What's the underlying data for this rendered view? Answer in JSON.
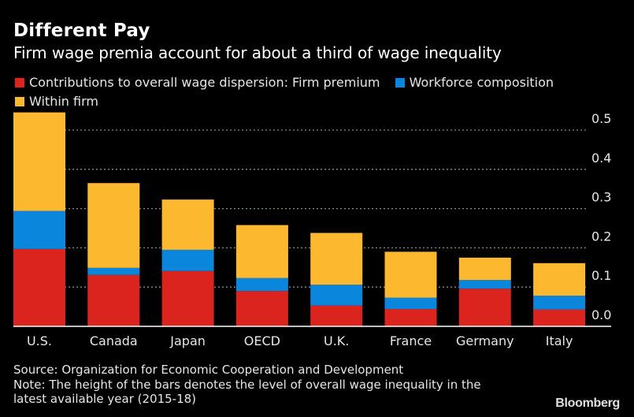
{
  "header": {
    "title": "Different Pay",
    "subtitle": "Firm wage premia account for about a third of wage inequality"
  },
  "footer": {
    "source": "Source: Organization for Economic Cooperation and Development",
    "note_line1": "Note: The height of the bars denotes the level of overall wage inequality in the",
    "note_line2": "latest available year (2015-18)",
    "brand": "Bloomberg"
  },
  "colors": {
    "background": "#000000",
    "firm_premium": "#dc241f",
    "workforce_composition": "#0a86dd",
    "within_firm": "#fcb930",
    "gridline": "#8a8a8a",
    "axis": "#ffffff"
  },
  "chart_data": {
    "type": "bar",
    "stacked": true,
    "title": "Different Pay",
    "subtitle": "Firm wage premia account for about a third of wage inequality",
    "legend_title": "Contributions to overall wage dispersion:",
    "legend_position": "top-left",
    "categories": [
      "U.S.",
      "Canada",
      "Japan",
      "OECD",
      "U.K.",
      "France",
      "Germany",
      "Italy"
    ],
    "series": [
      {
        "name": "Firm premium",
        "legend_label": "Contributions to overall wage dispersion: Firm premium",
        "color": "#dc241f",
        "values": [
          0.197,
          0.131,
          0.141,
          0.09,
          0.053,
          0.044,
          0.096,
          0.043
        ]
      },
      {
        "name": "Workforce composition",
        "legend_label": "Workforce composition",
        "color": "#0a86dd",
        "values": [
          0.097,
          0.018,
          0.054,
          0.033,
          0.053,
          0.029,
          0.022,
          0.035
        ]
      },
      {
        "name": "Within firm",
        "legend_label": "Within firm",
        "color": "#fcb930",
        "values": [
          0.251,
          0.216,
          0.128,
          0.135,
          0.132,
          0.117,
          0.057,
          0.083
        ]
      }
    ],
    "totals": [
      0.545,
      0.365,
      0.323,
      0.258,
      0.238,
      0.19,
      0.175,
      0.161
    ],
    "xlabel": "",
    "ylabel": "",
    "ylim": [
      0,
      0.5
    ],
    "yticks": [
      0.0,
      0.1,
      0.2,
      0.3,
      0.4,
      0.5
    ],
    "ytick_labels": [
      "0.0",
      "0.1",
      "0.2",
      "0.3",
      "0.4",
      "0.5"
    ],
    "y_axis_side": "right",
    "grid": "horizontal dotted"
  }
}
